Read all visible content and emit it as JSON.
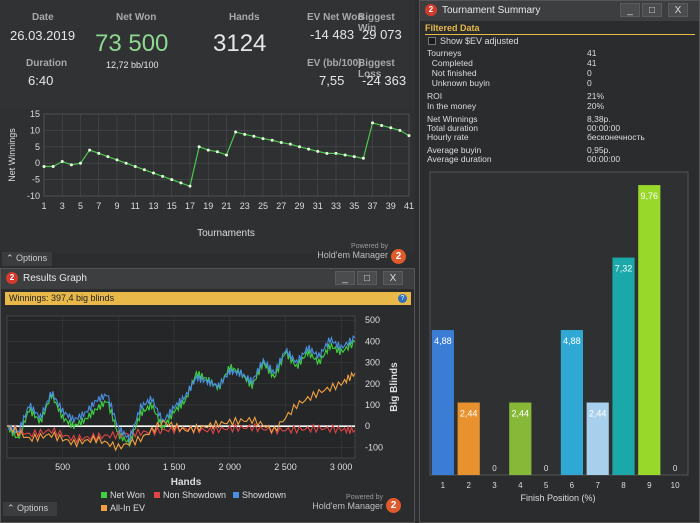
{
  "stats": {
    "date_label": "Date",
    "date_value": "26.03.2019",
    "duration_label": "Duration",
    "duration_value": "6:40",
    "net_won_label": "Net Won",
    "net_won_value": "73 500",
    "bb100_value": "12,72 bb/100",
    "hands_label": "Hands",
    "hands_value": "3124",
    "ev_net_won_label": "EV Net Won",
    "ev_net_won_value": "-14 483",
    "biggest_win_label": "Biggest Win",
    "biggest_win_value": "29 073",
    "ev_bb100_label": "EV (bb/100)",
    "ev_bb100_value": "7,55",
    "biggest_loss_label": "Biggest Loss",
    "biggest_loss_value": "-24 363"
  },
  "net_winnings_chart": {
    "ylabel": "Net Winnings",
    "xlabel": "Tournaments",
    "ylim": [
      -10,
      15
    ],
    "yticks": [
      "15",
      "10",
      "5",
      "0",
      "-5",
      "-10"
    ],
    "xticks": [
      "1",
      "3",
      "5",
      "7",
      "9",
      "11",
      "13",
      "15",
      "17",
      "19",
      "21",
      "23",
      "25",
      "27",
      "29",
      "31",
      "33",
      "35",
      "37",
      "39",
      "41"
    ],
    "options_label": "Options",
    "powered_by": "Powered by",
    "brand": "Hold'em Manager",
    "logo_text": "2"
  },
  "results_graph": {
    "title": "Results Graph",
    "min_btn": "_",
    "max_btn": "□",
    "close_btn": "X",
    "banner": "Winnings: 397,4 big blinds",
    "help_icon": "?",
    "ylabel": "Big Blinds",
    "xlabel": "Hands",
    "yticks": [
      "500",
      "400",
      "300",
      "200",
      "100",
      "0",
      "-100"
    ],
    "xticks": [
      "500",
      "1 000",
      "1 500",
      "2 000",
      "2 500",
      "3 000"
    ],
    "legend": [
      {
        "label": "Net Won",
        "color": "#3fcf3f"
      },
      {
        "label": "Non Showdown",
        "color": "#e04545"
      },
      {
        "label": "Showdown",
        "color": "#4a8fe0"
      },
      {
        "label": "All-In EV",
        "color": "#f0a040"
      }
    ],
    "options_label": "Options",
    "powered_by": "Powered by",
    "brand": "Hold'em Manager",
    "logo_text": "2"
  },
  "tournament_summary": {
    "title": "Tournament Summary",
    "min_btn": "_",
    "max_btn": "□",
    "close_btn": "X",
    "filter_title": "Filtered Data",
    "show_sev_label": "Show $EV adjusted",
    "rows": [
      {
        "label": "Tourneys",
        "value": "41"
      },
      {
        "label": "  Completed",
        "value": "41"
      },
      {
        "label": "  Not finished",
        "value": "0"
      },
      {
        "label": "  Unknown buyin",
        "value": "0"
      },
      {
        "label": "ROI",
        "value": "21%"
      },
      {
        "label": "In the money",
        "value": "20%"
      },
      {
        "label": "Net Winnings",
        "value": "8,38p."
      },
      {
        "label": "Total duration",
        "value": "00:00:00"
      },
      {
        "label": "Hourly rate",
        "value": "бесконечность"
      },
      {
        "label": "Average buyin",
        "value": "0,95p."
      },
      {
        "label": "Average duration",
        "value": "00:00:00"
      }
    ],
    "chart_xlabel": "Finish Position (%)"
  },
  "chart_data": [
    {
      "type": "line",
      "title": "",
      "xlabel": "Tournaments",
      "ylabel": "Net Winnings",
      "ylim": [
        -10,
        15
      ],
      "xlim": [
        1,
        41
      ],
      "grid": true,
      "series": [
        {
          "x": [
            1,
            2,
            3,
            4,
            5,
            6,
            7,
            8,
            9,
            10,
            11,
            12,
            13,
            14,
            15,
            16,
            17,
            18,
            19,
            20,
            21,
            22,
            23,
            24,
            25,
            26,
            27,
            28,
            29,
            30,
            31,
            32,
            33,
            34,
            35,
            36,
            37,
            38,
            39,
            40,
            41
          ],
          "values": [
            -1,
            -1,
            0.5,
            -0.5,
            0,
            4,
            3,
            2,
            1,
            0,
            -1,
            -2,
            -3,
            -4,
            -5,
            -6,
            -7,
            5,
            4,
            3.5,
            2.5,
            9.5,
            8.8,
            8.2,
            7.5,
            7,
            6.3,
            5.8,
            5,
            4.3,
            3.6,
            3,
            3,
            2.5,
            2,
            1.5,
            12.3,
            11.5,
            10.8,
            10,
            8.4
          ],
          "color": "#4cc94c"
        }
      ]
    },
    {
      "type": "line",
      "xlabel": "Hands",
      "ylabel": "Big Blinds",
      "ylim": [
        -150,
        520
      ],
      "xlim": [
        0,
        3124
      ],
      "legend_position": "bottom",
      "series": [
        {
          "name": "Net Won",
          "color": "#3fcf3f",
          "x": [
            0,
            100,
            200,
            300,
            400,
            500,
            600,
            700,
            800,
            900,
            1000,
            1100,
            1200,
            1300,
            1400,
            1500,
            1600,
            1700,
            1800,
            1900,
            2000,
            2100,
            2200,
            2300,
            2400,
            2500,
            2600,
            2700,
            2800,
            2900,
            3000,
            3124
          ],
          "values": [
            0,
            -60,
            80,
            20,
            150,
            40,
            0,
            30,
            80,
            120,
            -40,
            -80,
            60,
            100,
            -10,
            70,
            120,
            250,
            220,
            180,
            280,
            250,
            190,
            300,
            230,
            350,
            280,
            350,
            300,
            380,
            350,
            397.4
          ]
        },
        {
          "name": "Non Showdown",
          "color": "#e04545",
          "x": [
            0,
            200,
            400,
            600,
            800,
            1000,
            1200,
            1400,
            1600,
            1800,
            2000,
            2200,
            2400,
            2600,
            2800,
            3000,
            3124
          ],
          "values": [
            0,
            -40,
            -20,
            -60,
            -50,
            -40,
            -30,
            -20,
            -10,
            -20,
            -10,
            -5,
            -20,
            -15,
            -10,
            -15,
            -20
          ]
        },
        {
          "name": "Showdown",
          "color": "#4a8fe0",
          "x": [
            0,
            100,
            200,
            300,
            400,
            500,
            600,
            700,
            800,
            900,
            1000,
            1100,
            1200,
            1300,
            1400,
            1500,
            1600,
            1700,
            1800,
            1900,
            2000,
            2100,
            2200,
            2300,
            2400,
            2500,
            2600,
            2700,
            2800,
            2900,
            3000,
            3124
          ],
          "values": [
            0,
            -30,
            100,
            40,
            160,
            70,
            30,
            60,
            120,
            150,
            -10,
            -60,
            90,
            130,
            20,
            90,
            140,
            230,
            210,
            190,
            260,
            250,
            210,
            310,
            250,
            360,
            300,
            370,
            330,
            410,
            370,
            417
          ]
        },
        {
          "name": "All-In EV",
          "color": "#f0a040",
          "x": [
            0,
            200,
            400,
            600,
            800,
            1000,
            1200,
            1400,
            1600,
            1800,
            2000,
            2200,
            2400,
            2600,
            2800,
            3000,
            3124
          ],
          "values": [
            0,
            -60,
            -40,
            -80,
            -60,
            -100,
            -60,
            20,
            -20,
            0,
            20,
            30,
            -20,
            100,
            160,
            200,
            250
          ]
        }
      ]
    },
    {
      "type": "bar",
      "xlabel": "Finish Position (%)",
      "categories": [
        "1",
        "2",
        "3",
        "4",
        "5",
        "6",
        "7",
        "8",
        "9",
        "10"
      ],
      "values": [
        4.88,
        2.44,
        0,
        2.44,
        0,
        4.88,
        2.44,
        7.32,
        9.76,
        0
      ],
      "value_labels": [
        "4,88",
        "2,44",
        "0",
        "2,44",
        "0",
        "4,88",
        "2,44",
        "7,32",
        "9,76",
        "0"
      ],
      "colors": [
        "#3b7cd4",
        "#e8922f",
        "#888888",
        "#88b838",
        "#888888",
        "#2fa8d4",
        "#a8d0ec",
        "#1aa8a8",
        "#98d82a",
        "#888888"
      ],
      "ylim": [
        0,
        10.2
      ]
    }
  ]
}
